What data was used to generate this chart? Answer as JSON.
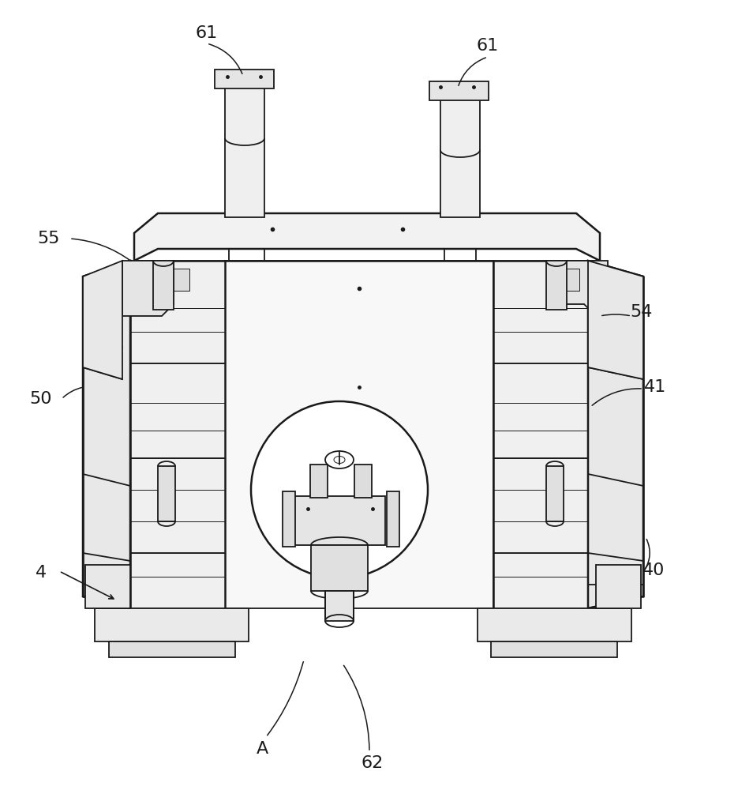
{
  "bg_color": "#ffffff",
  "line_color": "#1a1a1a",
  "label_color": "#000000",
  "label_fontsize": 16,
  "fig_width": 9.35,
  "fig_height": 10.0,
  "dpi": 100
}
